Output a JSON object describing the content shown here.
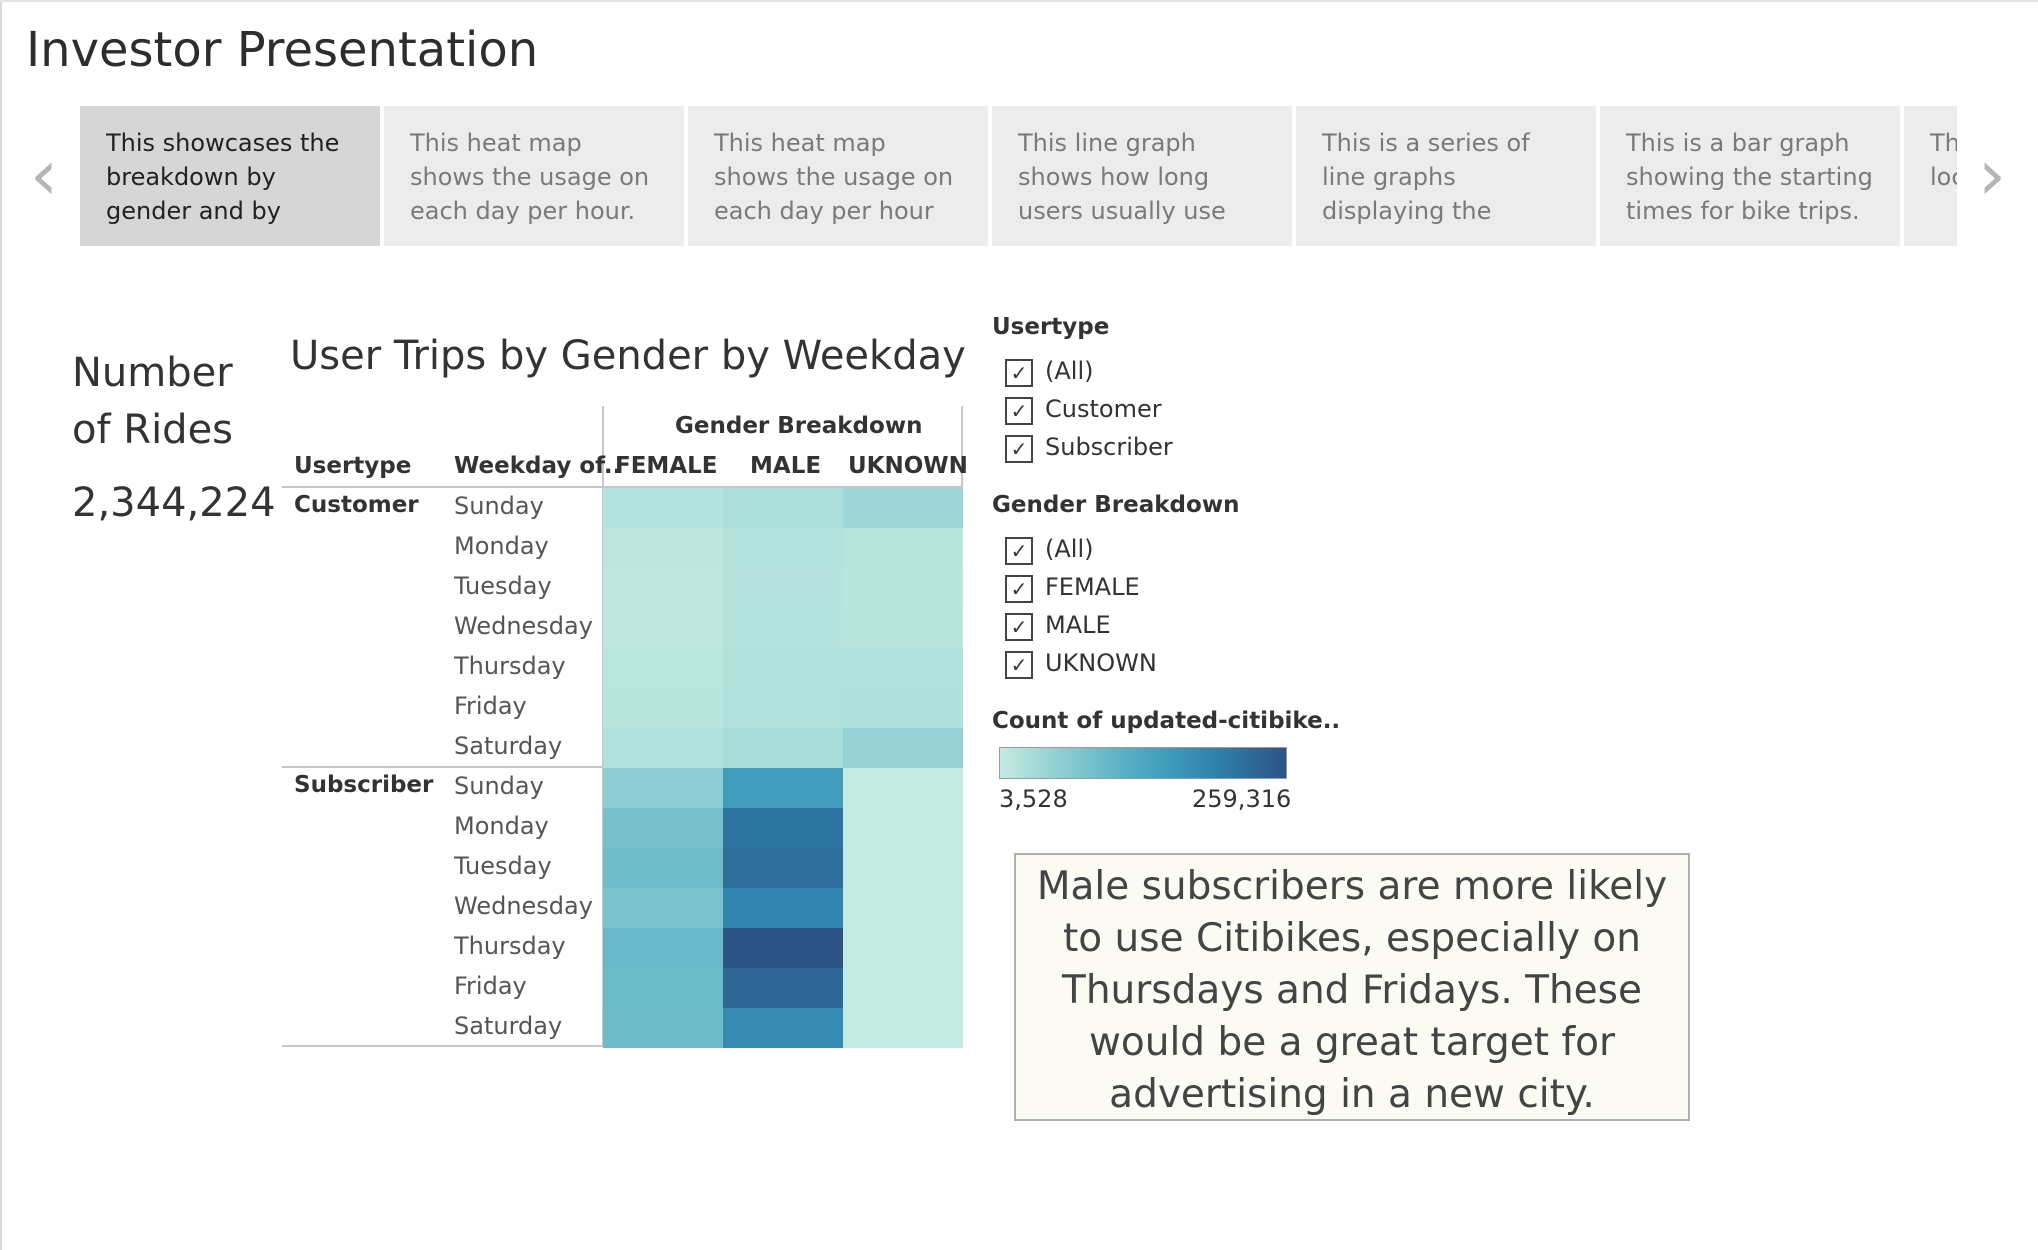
{
  "dashboard": {
    "title": "Investor Presentation"
  },
  "story_points": [
    {
      "text": "This showcases the breakdown by gender and by weekday.",
      "active": true
    },
    {
      "text": "This heat map shows the usage on each day per hour."
    },
    {
      "text": "This heat map shows the usage on each day per hour broken down"
    },
    {
      "text": "This line graph shows how long users usually use their"
    },
    {
      "text": "This is a series of line graphs displaying the gender breakdown of"
    },
    {
      "text": "This is a bar graph showing the starting times for bike trips."
    },
    {
      "text": "This displays the locations"
    }
  ],
  "nav": {
    "prev_icon": "chevron-left-icon",
    "next_icon": "chevron-right-icon",
    "prev_glyph": "‹",
    "next_glyph": "›"
  },
  "kpi": {
    "label": "Number of Rides",
    "value": "2,344,224"
  },
  "chart_data": {
    "type": "heatmap",
    "title": "User Trips by Gender by Weekday",
    "column_group_label": "Gender Breakdown",
    "row_headers": [
      "Usertype",
      "Weekday of.."
    ],
    "columns": [
      "FEMALE",
      "MALE",
      "UKNOWN"
    ],
    "weekdays": [
      "Sunday",
      "Monday",
      "Tuesday",
      "Wednesday",
      "Thursday",
      "Friday",
      "Saturday"
    ],
    "groups": [
      {
        "usertype": "Customer",
        "values": [
          [
            19000,
            28000,
            42000
          ],
          [
            12000,
            20000,
            17000
          ],
          [
            10000,
            18000,
            15000
          ],
          [
            11000,
            19000,
            16000
          ],
          [
            13000,
            22000,
            21000
          ],
          [
            14000,
            23000,
            25000
          ],
          [
            22000,
            32000,
            50000
          ]
        ]
      },
      {
        "usertype": "Subscriber",
        "values": [
          [
            58000,
            150000,
            4000
          ],
          [
            85000,
            215000,
            3528
          ],
          [
            90000,
            222000,
            3700
          ],
          [
            80000,
            190000,
            3600
          ],
          [
            98000,
            259316,
            3800
          ],
          [
            95000,
            235000,
            3700
          ],
          [
            92000,
            180000,
            3900
          ]
        ]
      }
    ],
    "color_scale": {
      "min": 3528,
      "max": 259316,
      "min_label": "3,528",
      "max_label": "259,316",
      "colors": [
        "#c4ebe1",
        "#85c9cf",
        "#4aa8c2",
        "#2f82ad",
        "#2c5485"
      ]
    }
  },
  "filters": {
    "usertype": {
      "title": "Usertype",
      "items": [
        "(All)",
        "Customer",
        "Subscriber"
      ]
    },
    "gender": {
      "title": "Gender Breakdown",
      "items": [
        "(All)",
        "FEMALE",
        "MALE",
        "UKNOWN"
      ]
    },
    "check_glyph": "✓"
  },
  "legend": {
    "title": "Count of updated-citibike.."
  },
  "annotation": {
    "text": "Male subscribers are more likely to use Citibikes, especially on Thursdays and Fridays. These would be a great target for advertising in a new city."
  }
}
